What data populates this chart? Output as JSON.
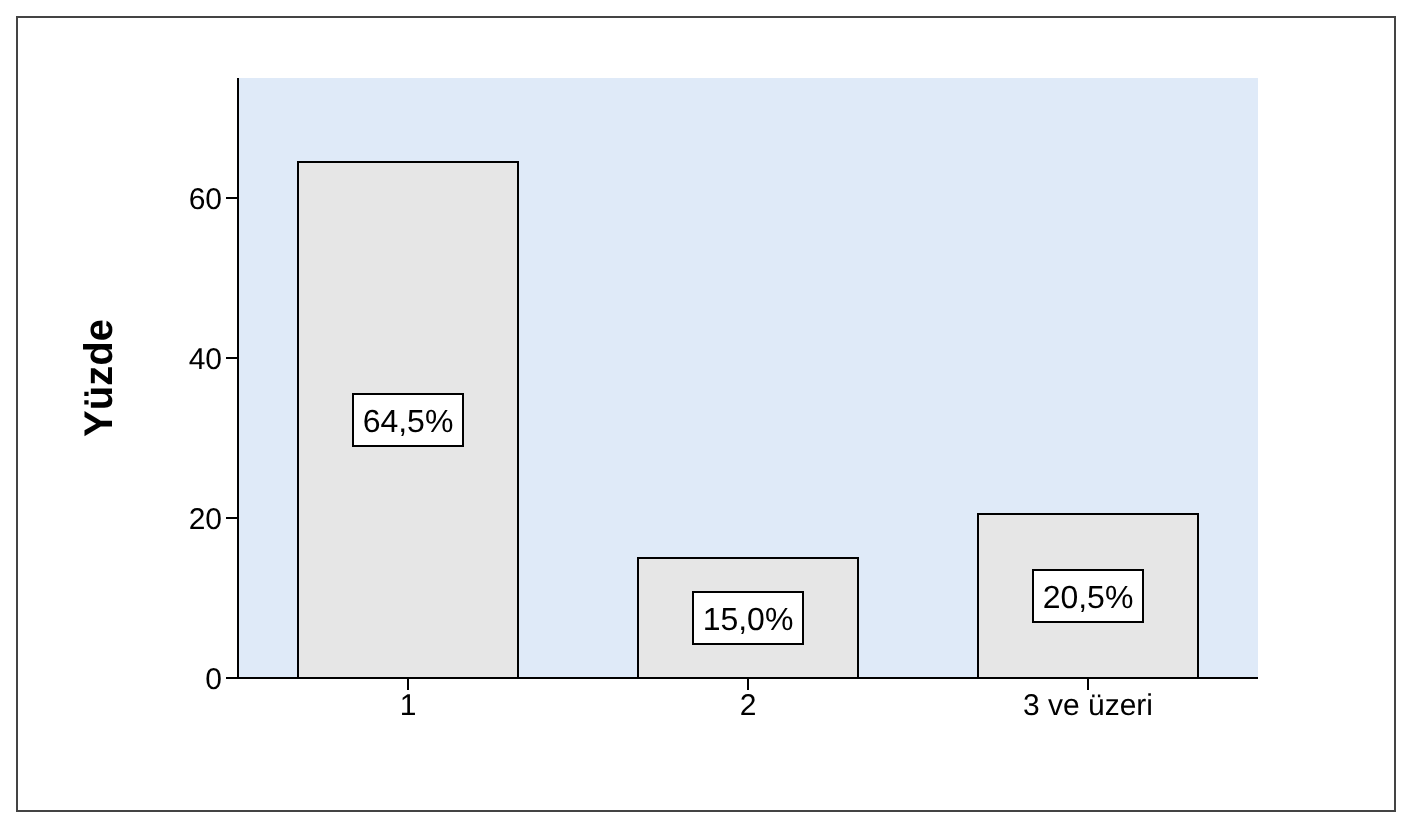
{
  "chart_data": {
    "type": "bar",
    "ylabel": "Yüzde",
    "categories": [
      "1",
      "2",
      "3 ve üzeri"
    ],
    "values": [
      64.5,
      15.0,
      20.5
    ],
    "value_labels": [
      "64,5%",
      "15,0%",
      "20,5%"
    ],
    "color": "#e6e6e6",
    "ylim": [
      0,
      75
    ],
    "yticks": [
      0,
      20,
      40,
      60
    ],
    "grid": false
  }
}
